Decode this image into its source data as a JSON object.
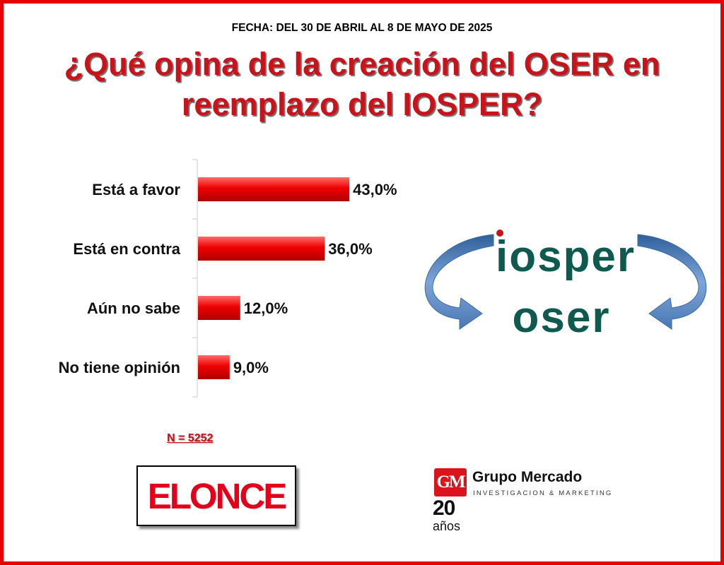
{
  "header": {
    "date": "FECHA: DEL 30 DE ABRIL AL 8 DE MAYO DE 2025",
    "title_line1": "¿Qué opina de la creación del OSER en",
    "title_line2": "reemplazo del IOSPER?"
  },
  "chart_data": {
    "type": "bar",
    "orientation": "horizontal",
    "categories": [
      "Está a favor",
      "Está en contra",
      "Aún no sabe",
      "No tiene opinión"
    ],
    "values": [
      43.0,
      36.0,
      12.0,
      9.0
    ],
    "value_labels": [
      "43,0%",
      "36,0%",
      "12,0%",
      "9,0%"
    ],
    "unit": "%",
    "xlim": [
      0,
      100
    ],
    "grid": false,
    "bar_color": "#e60000"
  },
  "sample_size": "N = 5252",
  "logos": {
    "iosper": "iosper",
    "oser": "oser",
    "elonce": "ELONCE",
    "gm_initials": "GM",
    "gm_name": "Grupo Mercado",
    "gm_subtitle": "INVESTIGACION & MARKETING",
    "gm_anniversary_number": "20",
    "gm_anniversary_word": "años"
  },
  "colors": {
    "frame": "#e60000",
    "title": "#c8131b",
    "logo_teal": "#0f5a4e",
    "logo_dot": "#c8131b",
    "arrow_blue": "#4f81bd"
  }
}
